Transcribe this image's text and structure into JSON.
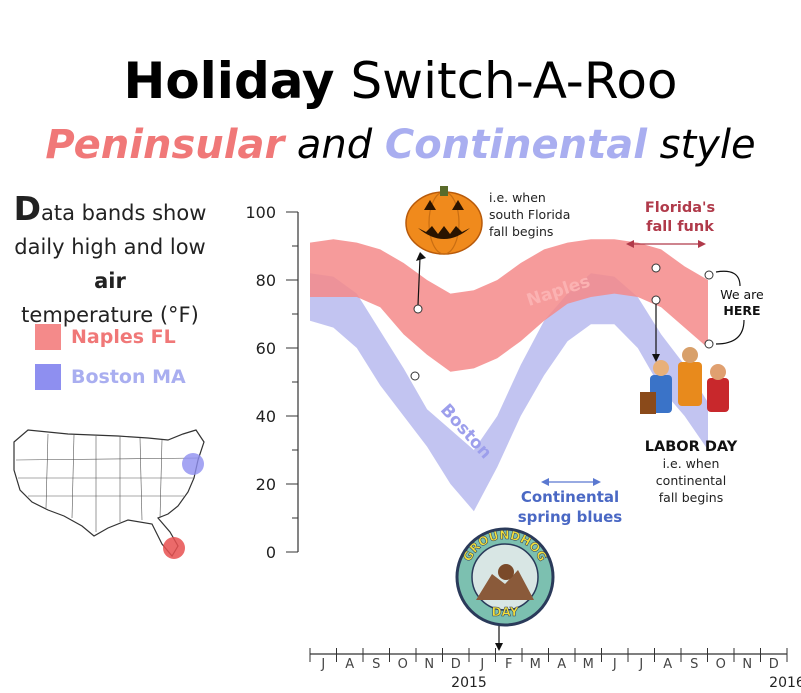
{
  "title": {
    "bold": "Holiday",
    "rest": "Switch-A-Roo"
  },
  "subtitle": {
    "word1": "Peninsular",
    "word2": "and",
    "word3": "Continental",
    "word4": "style"
  },
  "side_text": {
    "drop_cap": "D",
    "line1_rest": "ata bands show",
    "line2_a": "daily high and low",
    "line2_b": "air",
    "line3": "temperature (°F)"
  },
  "legend": [
    {
      "label": "Naples FL",
      "color": "#f48a8a"
    },
    {
      "label": "Boston MA",
      "color": "#8e8ff0"
    }
  ],
  "annotations": {
    "halloween": [
      "i.e. when",
      "south Florida",
      "fall begins"
    ],
    "fall_funk": [
      "Florida's",
      "fall funk"
    ],
    "we_are_here": [
      "We are",
      "HERE"
    ],
    "labor_day_title": "LABOR DAY",
    "labor_day": [
      "i.e. when",
      "continental",
      "fall begins"
    ],
    "spring_blues": [
      "Continental",
      "spring blues"
    ],
    "groundhog": [
      "GROUNDHOG",
      "DAY"
    ],
    "band_label_naples": "Naples",
    "band_label_boston": "Boston"
  },
  "chart_data": {
    "type": "area",
    "title": "Holiday Switch-A-Roo",
    "ylabel": "",
    "xlabel": "",
    "ylim": [
      0,
      100
    ],
    "yticks": [
      0,
      20,
      40,
      60,
      80,
      100
    ],
    "x_months": [
      "J",
      "A",
      "S",
      "O",
      "N",
      "D",
      "J",
      "F",
      "M",
      "A",
      "M",
      "J",
      "J",
      "A",
      "S",
      "O",
      "N",
      "D"
    ],
    "x_years": [
      "2015",
      "2016"
    ],
    "series": [
      {
        "name": "Naples FL",
        "color": "#f48a8a",
        "high": [
          91,
          92,
          91,
          89,
          85,
          80,
          76,
          77,
          80,
          85,
          89,
          91,
          92,
          92,
          91,
          89,
          84,
          80
        ],
        "low": [
          75,
          75,
          75,
          72,
          64,
          58,
          53,
          54,
          57,
          62,
          68,
          73,
          75,
          76,
          75,
          72,
          66,
          60
        ]
      },
      {
        "name": "Boston MA",
        "color": "#b3b5ee",
        "high": [
          82,
          81,
          76,
          65,
          54,
          42,
          36,
          30,
          40,
          55,
          68,
          76,
          82,
          81,
          75,
          64,
          55,
          44
        ],
        "low": [
          68,
          66,
          60,
          49,
          40,
          31,
          20,
          12,
          25,
          40,
          52,
          62,
          67,
          67,
          60,
          48,
          40,
          30
        ]
      }
    ]
  }
}
